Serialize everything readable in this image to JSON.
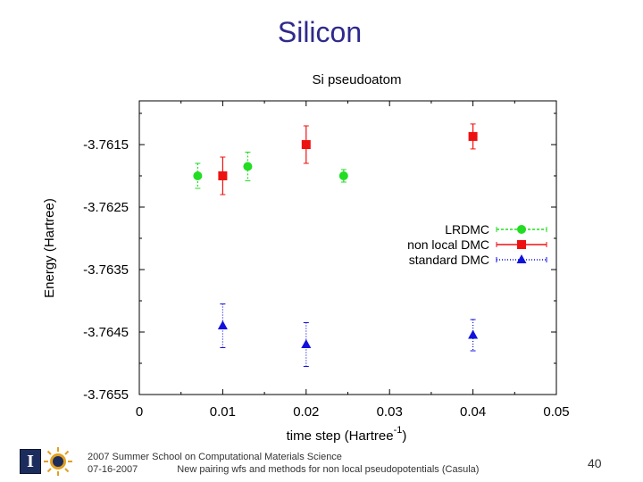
{
  "slide": {
    "title": "Silicon",
    "footer_line1": "2007 Summer School on Computational Materials Science",
    "footer_date": "07-16-2007",
    "footer_talk": "New pairing wfs and methods for non local pseudopotentials (Casula)",
    "slide_number": "40"
  },
  "chart_data": {
    "type": "scatter",
    "title": "Si pseudoatom",
    "xlabel": "time step (Hartree",
    "xlabel_sup": "-1",
    "xlabel_close": ")",
    "ylabel": "Energy (Hartree)",
    "xlim": [
      0,
      0.05
    ],
    "ylim": [
      -3.7655,
      -3.7608
    ],
    "x_ticks": [
      0,
      0.01,
      0.02,
      0.03,
      0.04,
      0.05
    ],
    "x_tick_labels": [
      "0",
      "0.01",
      "0.02",
      "0.03",
      "0.04",
      "0.05"
    ],
    "y_ticks": [
      -3.7615,
      -3.7625,
      -3.7635,
      -3.7645,
      -3.7655
    ],
    "y_tick_labels": [
      "-3.7615",
      "-3.7625",
      "-3.7635",
      "-3.7645",
      "-3.7655"
    ],
    "legend_position": "right",
    "series": [
      {
        "name": "LRDMC",
        "color": "#22dd22",
        "marker": "circle",
        "x": [
          0.007,
          0.013,
          0.0245
        ],
        "y": [
          -3.762,
          -3.76185,
          -3.762
        ],
        "err": [
          0.0002,
          0.00023,
          0.0001
        ]
      },
      {
        "name": "non local DMC",
        "color": "#ee1111",
        "marker": "square",
        "x": [
          0.01,
          0.02,
          0.04
        ],
        "y": [
          -3.762,
          -3.7615,
          -3.76137
        ],
        "err": [
          0.0003,
          0.0003,
          0.0002
        ]
      },
      {
        "name": "standard DMC",
        "color": "#1111dd",
        "marker": "triangle",
        "x": [
          0.01,
          0.02,
          0.04
        ],
        "y": [
          -3.7644,
          -3.7647,
          -3.76455
        ],
        "err": [
          0.00035,
          0.00035,
          0.00025
        ]
      }
    ]
  }
}
